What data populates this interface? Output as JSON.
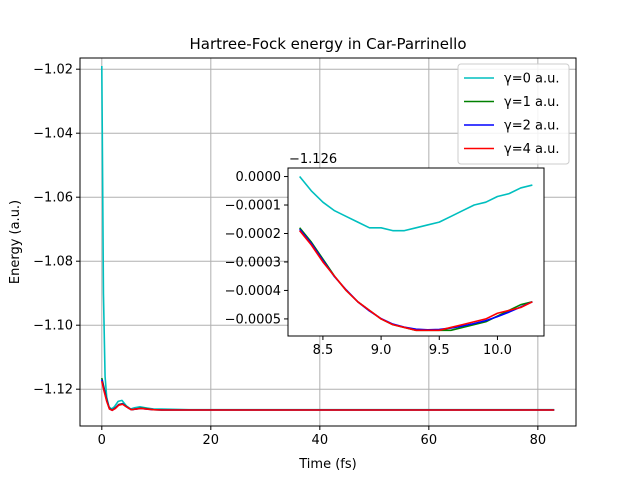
{
  "chart_data": [
    {
      "type": "line",
      "title": "Hartree-Fock energy in Car-Parrinello",
      "xlabel": "Time (fs)",
      "ylabel": "Energy (a.u.)",
      "xlim": [
        -4,
        87
      ],
      "ylim": [
        -1.1315,
        -1.0165
      ],
      "xticks": [
        0,
        20,
        40,
        60,
        80
      ],
      "xtick_labels": [
        "0",
        "20",
        "40",
        "60",
        "80"
      ],
      "yticks": [
        -1.12,
        -1.1,
        -1.08,
        -1.06,
        -1.04,
        -1.02
      ],
      "ytick_labels": [
        "−1.12",
        "−1.10",
        "−1.08",
        "−1.06",
        "−1.04",
        "−1.02"
      ],
      "grid": true,
      "legend_position": "top-right",
      "series": [
        {
          "name": "γ=0 a.u.",
          "color": "#00bfbf",
          "x": [
            0,
            0.3,
            0.6,
            0.9,
            1.3,
            1.8,
            2.3,
            3,
            3.7,
            4.5,
            5.3,
            6,
            7,
            8,
            9.5,
            11,
            13,
            16,
            20,
            30,
            40,
            50,
            60,
            70,
            83
          ],
          "y": [
            -1.019,
            -1.09,
            -1.116,
            -1.1225,
            -1.1255,
            -1.1262,
            -1.1255,
            -1.1238,
            -1.1235,
            -1.1252,
            -1.1262,
            -1.1258,
            -1.1255,
            -1.1258,
            -1.1262,
            -1.1262,
            -1.1263,
            -1.1264,
            -1.1264,
            -1.1264,
            -1.1264,
            -1.1264,
            -1.1264,
            -1.1264,
            -1.1264
          ]
        },
        {
          "name": "γ=1 a.u.",
          "color": "#008000",
          "x": [
            0,
            0.4,
            0.9,
            1.4,
            1.9,
            2.5,
            3.1,
            3.8,
            4.6,
            5.4,
            6.2,
            7.2,
            8.2,
            9.5,
            11,
            13,
            16,
            20,
            30,
            40,
            50,
            60,
            70,
            83
          ],
          "y": [
            -1.1165,
            -1.1195,
            -1.1232,
            -1.126,
            -1.1265,
            -1.1258,
            -1.1248,
            -1.1245,
            -1.1255,
            -1.1264,
            -1.1262,
            -1.1259,
            -1.1261,
            -1.1264,
            -1.1265,
            -1.1265,
            -1.1265,
            -1.1265,
            -1.1265,
            -1.1265,
            -1.1265,
            -1.1265,
            -1.1265,
            -1.1265
          ]
        },
        {
          "name": "γ=2 a.u.",
          "color": "#0000ff",
          "x": [
            0,
            0.4,
            0.9,
            1.4,
            1.9,
            2.5,
            3.1,
            3.8,
            4.6,
            5.4,
            6.2,
            7.2,
            8.2,
            9.5,
            11,
            13,
            16,
            20,
            30,
            40,
            50,
            60,
            70,
            83
          ],
          "y": [
            -1.117,
            -1.12,
            -1.1235,
            -1.1261,
            -1.1266,
            -1.1259,
            -1.1249,
            -1.1246,
            -1.1256,
            -1.1264,
            -1.1262,
            -1.126,
            -1.1262,
            -1.1264,
            -1.1265,
            -1.1265,
            -1.1265,
            -1.1265,
            -1.1265,
            -1.1265,
            -1.1265,
            -1.1265,
            -1.1265,
            -1.1265
          ]
        },
        {
          "name": "γ=4 a.u.",
          "color": "#ff0000",
          "x": [
            0,
            0.4,
            0.9,
            1.4,
            1.9,
            2.5,
            3.1,
            3.8,
            4.6,
            5.4,
            6.2,
            7.2,
            8.2,
            9.5,
            11,
            13,
            16,
            20,
            30,
            40,
            50,
            60,
            70,
            83
          ],
          "y": [
            -1.1175,
            -1.1205,
            -1.1238,
            -1.1262,
            -1.1266,
            -1.126,
            -1.125,
            -1.1247,
            -1.1256,
            -1.1264,
            -1.1262,
            -1.126,
            -1.1262,
            -1.1264,
            -1.1265,
            -1.1265,
            -1.1265,
            -1.1265,
            -1.1265,
            -1.1265,
            -1.1265,
            -1.1265,
            -1.1265,
            -1.1265
          ]
        }
      ]
    },
    {
      "type": "line",
      "title": "",
      "xlabel": "",
      "ylabel": "",
      "offset_label": "−1.126",
      "xlim": [
        8.2,
        10.4
      ],
      "ylim": [
        -0.00056,
        3e-05
      ],
      "xticks": [
        8.5,
        9.0,
        9.5,
        10.0
      ],
      "xtick_labels": [
        "8.5",
        "9.0",
        "9.5",
        "10.0"
      ],
      "yticks": [
        0.0,
        -0.0001,
        -0.0002,
        -0.0003,
        -0.0004,
        -0.0005
      ],
      "ytick_labels": [
        "0.0000",
        "−0.0001",
        "−0.0002",
        "−0.0003",
        "−0.0004",
        "−0.0005"
      ],
      "grid": false,
      "series": [
        {
          "name": "γ=0 a.u.",
          "color": "#00bfbf",
          "x": [
            8.3,
            8.4,
            8.5,
            8.6,
            8.7,
            8.8,
            8.9,
            9.0,
            9.1,
            9.2,
            9.3,
            9.4,
            9.5,
            9.6,
            9.7,
            9.8,
            9.9,
            10.0,
            10.1,
            10.2,
            10.3
          ],
          "y": [
            0.0,
            -5e-05,
            -9e-05,
            -0.00012,
            -0.00014,
            -0.00016,
            -0.00018,
            -0.00018,
            -0.00019,
            -0.00019,
            -0.00018,
            -0.00017,
            -0.00016,
            -0.00014,
            -0.00012,
            -0.0001,
            -9e-05,
            -7e-05,
            -6e-05,
            -4e-05,
            -3e-05
          ]
        },
        {
          "name": "γ=1 a.u.",
          "color": "#008000",
          "x": [
            8.3,
            8.4,
            8.5,
            8.6,
            8.7,
            8.8,
            8.9,
            9.0,
            9.1,
            9.2,
            9.3,
            9.4,
            9.5,
            9.6,
            9.7,
            9.8,
            9.9,
            10.0,
            10.1,
            10.2,
            10.3
          ],
          "y": [
            -0.00018,
            -0.00023,
            -0.00029,
            -0.00035,
            -0.0004,
            -0.00044,
            -0.00047,
            -0.0005,
            -0.00052,
            -0.00053,
            -0.00054,
            -0.00054,
            -0.00054,
            -0.00054,
            -0.00053,
            -0.00052,
            -0.00051,
            -0.00049,
            -0.00047,
            -0.00045,
            -0.00044
          ]
        },
        {
          "name": "γ=2 a.u.",
          "color": "#0000ff",
          "x": [
            8.3,
            8.4,
            8.5,
            8.6,
            8.7,
            8.8,
            8.9,
            9.0,
            9.1,
            9.2,
            9.3,
            9.4,
            9.5,
            9.6,
            9.7,
            9.8,
            9.9,
            10.0,
            10.1,
            10.2,
            10.3
          ],
          "y": [
            -0.000185,
            -0.000235,
            -0.000295,
            -0.000352,
            -0.000398,
            -0.00044,
            -0.000472,
            -0.000499,
            -0.000518,
            -0.000529,
            -0.000536,
            -0.000538,
            -0.000537,
            -0.000532,
            -0.000525,
            -0.000516,
            -0.000506,
            -0.000492,
            -0.000476,
            -0.000458,
            -0.00044
          ]
        },
        {
          "name": "γ=4 a.u.",
          "color": "#ff0000",
          "x": [
            8.3,
            8.4,
            8.5,
            8.6,
            8.7,
            8.8,
            8.9,
            9.0,
            9.1,
            9.2,
            9.3,
            9.4,
            9.5,
            9.6,
            9.7,
            9.8,
            9.9,
            10.0,
            10.1,
            10.2,
            10.3
          ],
          "y": [
            -0.00019,
            -0.00024,
            -0.0003,
            -0.00035,
            -0.0004,
            -0.00044,
            -0.00047,
            -0.0005,
            -0.00052,
            -0.00053,
            -0.00054,
            -0.00054,
            -0.00054,
            -0.00053,
            -0.00052,
            -0.00051,
            -0.0005,
            -0.00048,
            -0.00047,
            -0.00046,
            -0.00044
          ]
        }
      ]
    }
  ]
}
